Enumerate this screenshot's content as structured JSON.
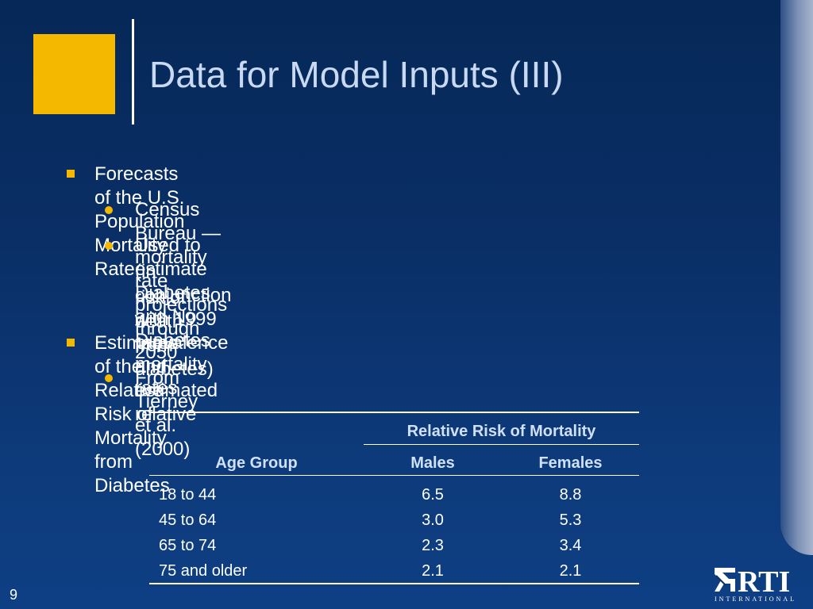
{
  "slide": {
    "title": "Data for Model Inputs (III)",
    "page_number": "9"
  },
  "bullets": [
    {
      "text": "Forecasts of the U.S. Population Mortality Rate",
      "sub": [
        {
          "lines": [
            "Census Bureau — mortality rate projections through 2050"
          ]
        },
        {
          "lines": [
            "Used to estimate Diabetes and No Diabetes mortality rates",
            "(in conjunction with 1999 prevalence and estimated relative",
            "risk of death from diabetes)"
          ]
        }
      ]
    },
    {
      "text": "Estimates of the Relative Risk of Mortality from Diabetes",
      "sub": [
        {
          "lines": [
            "From Tierney et al. (2000)"
          ]
        }
      ]
    }
  ],
  "table": {
    "group_header": "Relative Risk of Mortality",
    "columns": [
      "Age Group",
      "Males",
      "Females"
    ],
    "rows": [
      [
        "18 to 44",
        "6.5",
        "8.8"
      ],
      [
        "45 to 64",
        "3.0",
        "5.3"
      ],
      [
        "65 to 74",
        "2.3",
        "3.4"
      ],
      [
        "75 and older",
        "2.1",
        "2.1"
      ]
    ]
  },
  "logo": {
    "name": "RTI",
    "subtitle": "INTERNATIONAL"
  },
  "colors": {
    "accent": "#f5b800",
    "background": "#0a2f66",
    "title": "#c9d9f2"
  }
}
